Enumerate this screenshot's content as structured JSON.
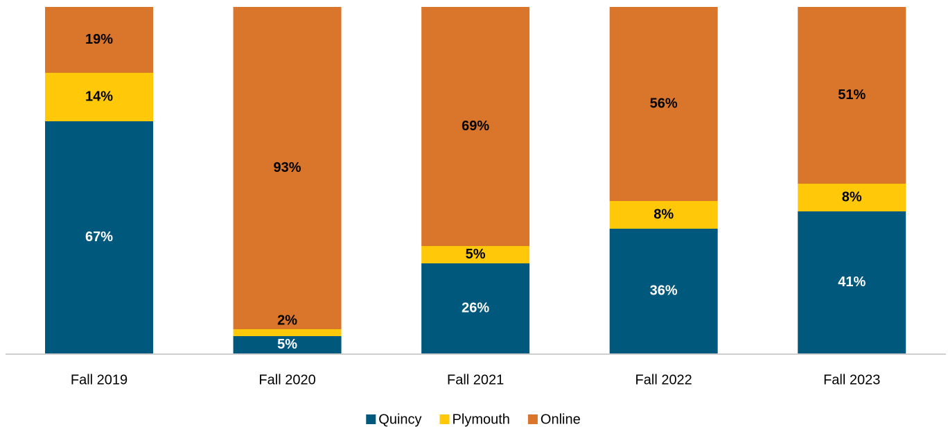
{
  "chart_data": {
    "type": "stacked_bar",
    "categories": [
      "Fall 2019",
      "Fall 2020",
      "Fall 2021",
      "Fall 2022",
      "Fall 2023"
    ],
    "series": [
      {
        "name": "Quincy",
        "color": "#00587c",
        "values": [
          67,
          5,
          26,
          36,
          41
        ],
        "value_labels": [
          "67%",
          "5%",
          "26%",
          "36%",
          "41%"
        ]
      },
      {
        "name": "Plymouth",
        "color": "#ffc90a",
        "values": [
          14,
          2,
          5,
          8,
          8
        ],
        "value_labels": [
          "14%",
          "2%",
          "5%",
          "8%",
          "8%"
        ]
      },
      {
        "name": "Online",
        "color": "#d9762b",
        "values": [
          19,
          93,
          69,
          56,
          51
        ],
        "value_labels": [
          "19%",
          "93%",
          "69%",
          "56%",
          "51%"
        ]
      }
    ],
    "ylim": [
      0,
      100
    ],
    "legend": "bottom"
  }
}
